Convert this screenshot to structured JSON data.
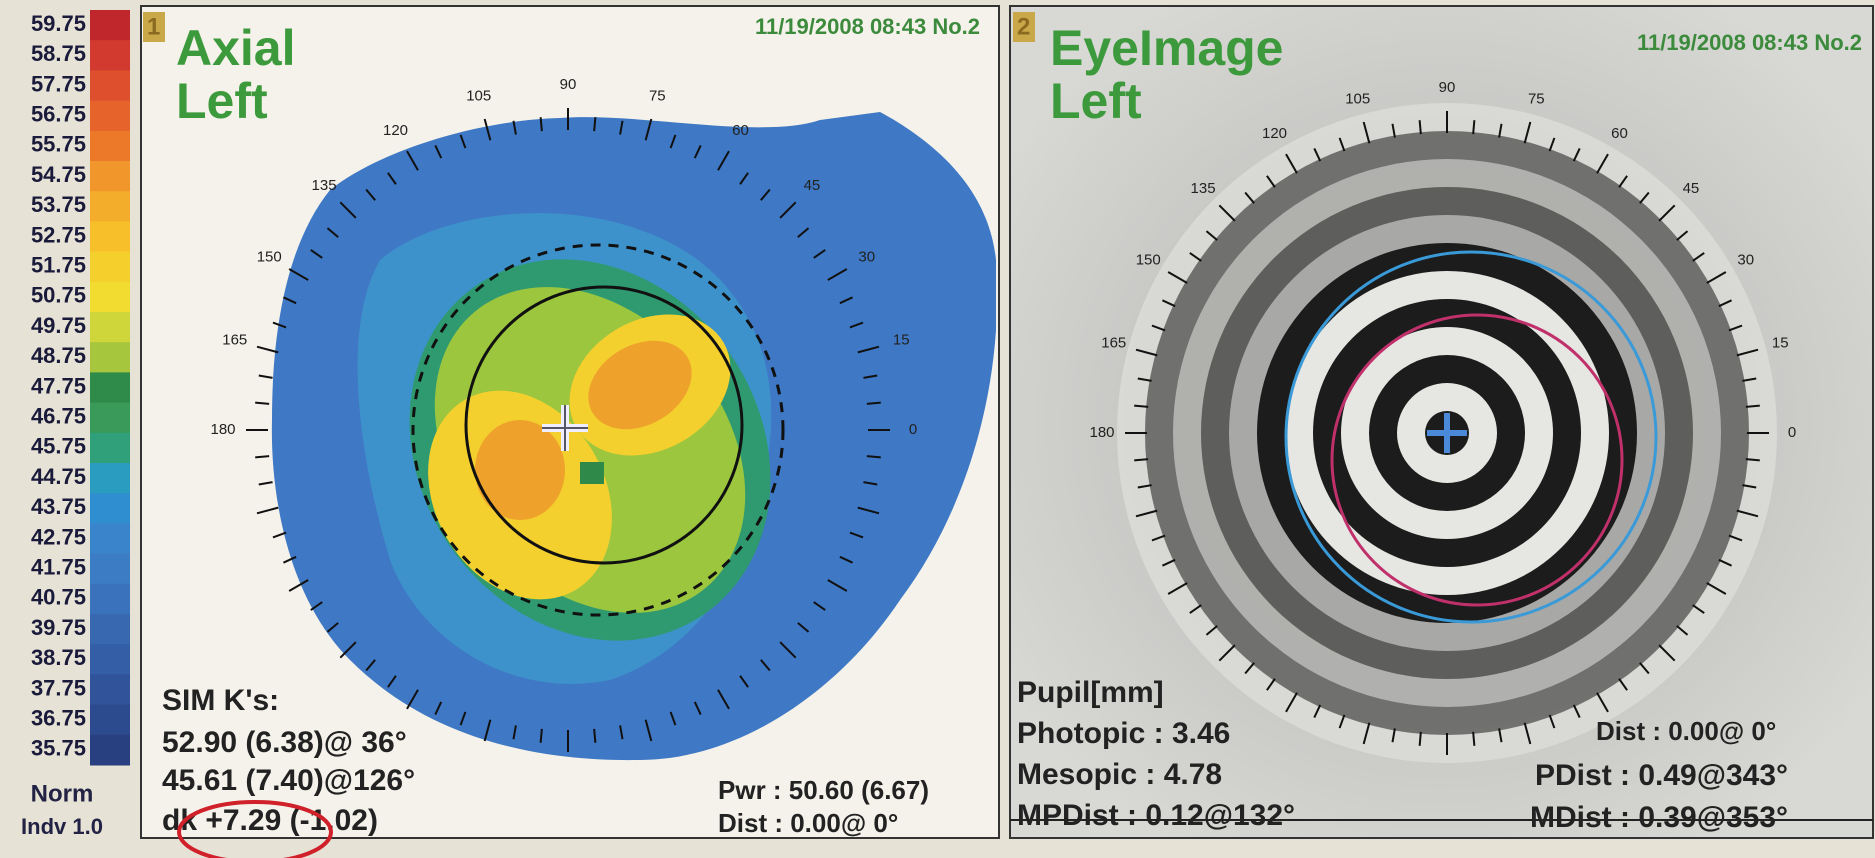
{
  "scale": {
    "labels": [
      "59.75",
      "58.75",
      "57.75",
      "56.75",
      "55.75",
      "54.75",
      "53.75",
      "52.75",
      "51.75",
      "50.75",
      "49.75",
      "48.75",
      "47.75",
      "46.75",
      "45.75",
      "44.75",
      "43.75",
      "42.75",
      "41.75",
      "40.75",
      "39.75",
      "38.75",
      "37.75",
      "36.75",
      "35.75"
    ],
    "colors": [
      "#c0272d",
      "#d23a2f",
      "#de4f2e",
      "#e6632c",
      "#ec792a",
      "#f0962a",
      "#f4ad2a",
      "#f7c02a",
      "#f5cf2c",
      "#f2dc30",
      "#cfd63a",
      "#a6c63e",
      "#2e8b4a",
      "#3a9a5a",
      "#2fa07a",
      "#2a9cc0",
      "#2f8ed0",
      "#3a84cc",
      "#3b7cc4",
      "#3a72bc",
      "#3868b0",
      "#345ea6",
      "#30539a",
      "#2c4a8e",
      "#284080"
    ],
    "norm": "Norm",
    "indv": "Indv 1.0"
  },
  "panel1": {
    "number": "1",
    "title": "Axial",
    "subtitle": "Left",
    "timestamp": "11/19/2008 08:43 No.2",
    "angles": [
      "0",
      "15",
      "30",
      "45",
      "60",
      "75",
      "90",
      "105",
      "120",
      "135",
      "150",
      "165",
      "180"
    ],
    "sim_k": {
      "heading": "SIM K's:",
      "lines": [
        "52.90 (6.38)@ 36°",
        "45.61 (7.40)@126°",
        "dk +7.29 (-1.02)"
      ]
    },
    "pwr": "Pwr :  50.60 (6.67)",
    "dist": "Dist :  0.00@  0°"
  },
  "panel2": {
    "number": "2",
    "title": "EyeImage",
    "subtitle": "Left",
    "timestamp": "11/19/2008 08:43 No.2",
    "angles": [
      "0",
      "15",
      "30",
      "45",
      "60",
      "75",
      "90",
      "105",
      "120",
      "135",
      "150",
      "165",
      "180"
    ],
    "pupil": {
      "heading": "Pupil[mm]",
      "lines": [
        "Photopic : 3.46",
        "Mesopic : 4.78",
        "MPDist :  0.12@132°"
      ]
    },
    "dist": "Dist :  0.00@  0°",
    "pdist": "PDist :  0.49@343°",
    "mdist": "MDist :  0.39@353°"
  }
}
